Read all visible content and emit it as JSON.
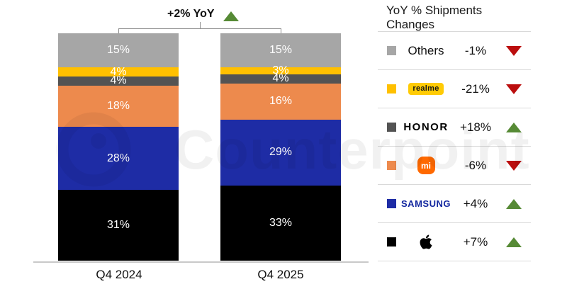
{
  "header": {
    "total_change_label": "+2% YoY",
    "total_trend": "up"
  },
  "chart_data": {
    "type": "bar",
    "stacked": true,
    "unit": "%",
    "categories": [
      "Q4 2024",
      "Q4 2025"
    ],
    "series_order": "top-to-bottom",
    "series": [
      {
        "name": "Others",
        "color": "#a6a6a6",
        "values": [
          15,
          15
        ],
        "labels": [
          "15%",
          "15%"
        ]
      },
      {
        "name": "realme",
        "color": "#ffc000",
        "values": [
          4,
          3
        ],
        "labels": [
          "4%",
          "3%"
        ]
      },
      {
        "name": "HONOR",
        "color": "#535353",
        "values": [
          4,
          4
        ],
        "labels": [
          "4%",
          "4%"
        ]
      },
      {
        "name": "Xiaomi",
        "color": "#ed8a4d",
        "values": [
          18,
          16
        ],
        "labels": [
          "18%",
          "16%"
        ]
      },
      {
        "name": "Samsung",
        "color": "#1e2ca5",
        "values": [
          28,
          29
        ],
        "labels": [
          "28%",
          "29%"
        ]
      },
      {
        "name": "Apple",
        "color": "#000000",
        "values": [
          31,
          33
        ],
        "labels": [
          "31%",
          "33%"
        ]
      }
    ],
    "total_yoy_change": "+2% YoY",
    "legend_position": "right",
    "grid": false
  },
  "legend": {
    "title": "YoY % Shipments Changes",
    "rows": [
      {
        "brand": "Others",
        "logo_text": "Others",
        "change": "-1%",
        "trend": "down",
        "color": "#a6a6a6"
      },
      {
        "brand": "realme",
        "logo_text": "realme",
        "change": "-21%",
        "trend": "down",
        "color": "#ffc000"
      },
      {
        "brand": "HONOR",
        "logo_text": "HONOR",
        "change": "+18%",
        "trend": "up",
        "color": "#535353"
      },
      {
        "brand": "Xiaomi",
        "logo_text": "mi",
        "change": "-6%",
        "trend": "down",
        "color": "#ed8a4d"
      },
      {
        "brand": "SAMSUNG",
        "logo_text": "SAMSUNG",
        "change": "+4%",
        "trend": "up",
        "color": "#1e2ca5"
      },
      {
        "brand": "Apple",
        "logo_text": "",
        "change": "+7%",
        "trend": "up",
        "color": "#000000"
      }
    ]
  },
  "watermark": {
    "text": "Counterpoint"
  },
  "colors": {
    "trend_up_green": "#568a35",
    "trend_down_red": "#bb0e0e",
    "samsung_wordmark_blue": "#1428a0",
    "mi_logo_orange": "#ff6900",
    "realme_badge_yellow": "#ffcb05",
    "axis_gray": "#c9c9c9",
    "divider_gray": "#d9d9d9",
    "bracket_gray": "#8f8f8f"
  }
}
